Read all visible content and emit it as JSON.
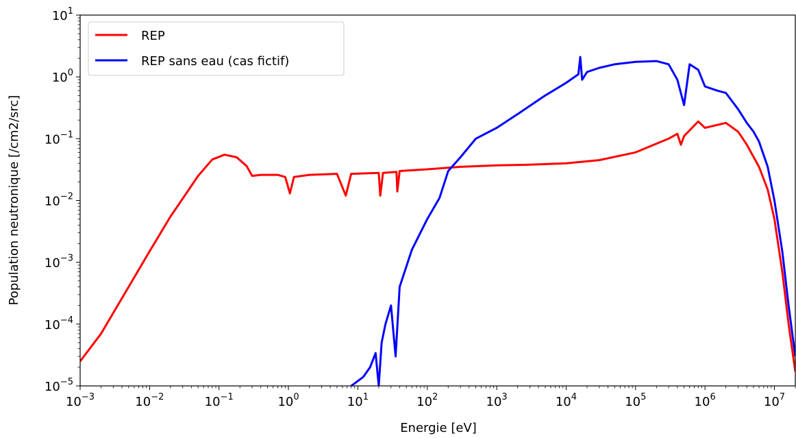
{
  "chart_data": {
    "type": "line",
    "xlabel": "Energie [eV]",
    "ylabel": "Population neutronique [/cm2/src]",
    "x_scale": "log",
    "y_scale": "log",
    "xlim": [
      0.001,
      20000000
    ],
    "ylim": [
      1e-05,
      10
    ],
    "x_ticks": [
      {
        "base": "10",
        "exp": "−3",
        "value": 0.001
      },
      {
        "base": "10",
        "exp": "−2",
        "value": 0.01
      },
      {
        "base": "10",
        "exp": "−1",
        "value": 0.1
      },
      {
        "base": "10",
        "exp": "0",
        "value": 1
      },
      {
        "base": "10",
        "exp": "1",
        "value": 10
      },
      {
        "base": "10",
        "exp": "2",
        "value": 100
      },
      {
        "base": "10",
        "exp": "3",
        "value": 1000
      },
      {
        "base": "10",
        "exp": "4",
        "value": 10000
      },
      {
        "base": "10",
        "exp": "5",
        "value": 100000
      },
      {
        "base": "10",
        "exp": "6",
        "value": 1000000
      },
      {
        "base": "10",
        "exp": "7",
        "value": 10000000
      }
    ],
    "y_ticks": [
      {
        "base": "10",
        "exp": "−5",
        "value": 1e-05
      },
      {
        "base": "10",
        "exp": "−4",
        "value": 0.0001
      },
      {
        "base": "10",
        "exp": "−3",
        "value": 0.001
      },
      {
        "base": "10",
        "exp": "−2",
        "value": 0.01
      },
      {
        "base": "10",
        "exp": "−1",
        "value": 0.1
      },
      {
        "base": "10",
        "exp": "0",
        "value": 1
      },
      {
        "base": "10",
        "exp": "1",
        "value": 10
      }
    ],
    "grid": false,
    "legend_position": "top-left",
    "series": [
      {
        "name": "REP",
        "color": "#ff0000",
        "points": [
          [
            0.001,
            2.5e-05
          ],
          [
            0.002,
            7e-05
          ],
          [
            0.005,
            0.0004
          ],
          [
            0.01,
            0.0015
          ],
          [
            0.02,
            0.0055
          ],
          [
            0.05,
            0.025
          ],
          [
            0.08,
            0.046
          ],
          [
            0.12,
            0.055
          ],
          [
            0.18,
            0.05
          ],
          [
            0.25,
            0.036
          ],
          [
            0.3,
            0.025
          ],
          [
            0.4,
            0.026
          ],
          [
            0.7,
            0.026
          ],
          [
            0.9,
            0.024
          ],
          [
            1.05,
            0.013
          ],
          [
            1.2,
            0.024
          ],
          [
            2,
            0.026
          ],
          [
            5,
            0.027
          ],
          [
            6.7,
            0.012
          ],
          [
            8,
            0.027
          ],
          [
            20,
            0.028
          ],
          [
            21,
            0.012
          ],
          [
            23,
            0.028
          ],
          [
            36,
            0.029
          ],
          [
            37,
            0.014
          ],
          [
            40,
            0.03
          ],
          [
            100,
            0.032
          ],
          [
            300,
            0.035
          ],
          [
            1000,
            0.037
          ],
          [
            3000,
            0.038
          ],
          [
            10000,
            0.04
          ],
          [
            30000,
            0.045
          ],
          [
            100000,
            0.06
          ],
          [
            300000,
            0.1
          ],
          [
            400000,
            0.12
          ],
          [
            450000,
            0.08
          ],
          [
            500000,
            0.11
          ],
          [
            800000,
            0.19
          ],
          [
            1000000,
            0.15
          ],
          [
            2000000,
            0.18
          ],
          [
            3000000,
            0.13
          ],
          [
            4000000,
            0.08
          ],
          [
            6000000,
            0.035
          ],
          [
            8000000,
            0.015
          ],
          [
            10000000,
            0.005
          ],
          [
            13000000,
            0.0007
          ],
          [
            16000000,
            0.0001
          ],
          [
            20000000,
            1.7e-05
          ]
        ]
      },
      {
        "name": "REP sans eau (cas fictif)",
        "color": "#0000ff",
        "points": [
          [
            8,
            1e-05
          ],
          [
            9,
            1.1e-05
          ],
          [
            12,
            1.4e-05
          ],
          [
            15,
            2e-05
          ],
          [
            18,
            3.4e-05
          ],
          [
            20,
            1e-05
          ],
          [
            22,
            5e-05
          ],
          [
            25,
            0.0001
          ],
          [
            30,
            0.0002
          ],
          [
            35,
            3e-05
          ],
          [
            40,
            0.0004
          ],
          [
            60,
            0.0016
          ],
          [
            100,
            0.005
          ],
          [
            150,
            0.011
          ],
          [
            200,
            0.03
          ],
          [
            300,
            0.05
          ],
          [
            500,
            0.1
          ],
          [
            1000,
            0.15
          ],
          [
            2000,
            0.25
          ],
          [
            5000,
            0.5
          ],
          [
            10000,
            0.8
          ],
          [
            15000,
            1.1
          ],
          [
            16000,
            2.1
          ],
          [
            17000,
            0.9
          ],
          [
            20000,
            1.2
          ],
          [
            30000,
            1.4
          ],
          [
            50000,
            1.6
          ],
          [
            100000,
            1.75
          ],
          [
            200000,
            1.8
          ],
          [
            300000,
            1.6
          ],
          [
            400000,
            0.9
          ],
          [
            500000,
            0.35
          ],
          [
            600000,
            1.6
          ],
          [
            800000,
            1.3
          ],
          [
            1000000,
            0.7
          ],
          [
            1500000,
            0.6
          ],
          [
            2000000,
            0.55
          ],
          [
            3000000,
            0.3
          ],
          [
            4000000,
            0.18
          ],
          [
            5000000,
            0.13
          ],
          [
            6000000,
            0.09
          ],
          [
            8000000,
            0.035
          ],
          [
            10000000,
            0.01
          ],
          [
            13000000,
            0.0015
          ],
          [
            16000000,
            0.0002
          ],
          [
            20000000,
            3e-05
          ]
        ]
      }
    ]
  }
}
